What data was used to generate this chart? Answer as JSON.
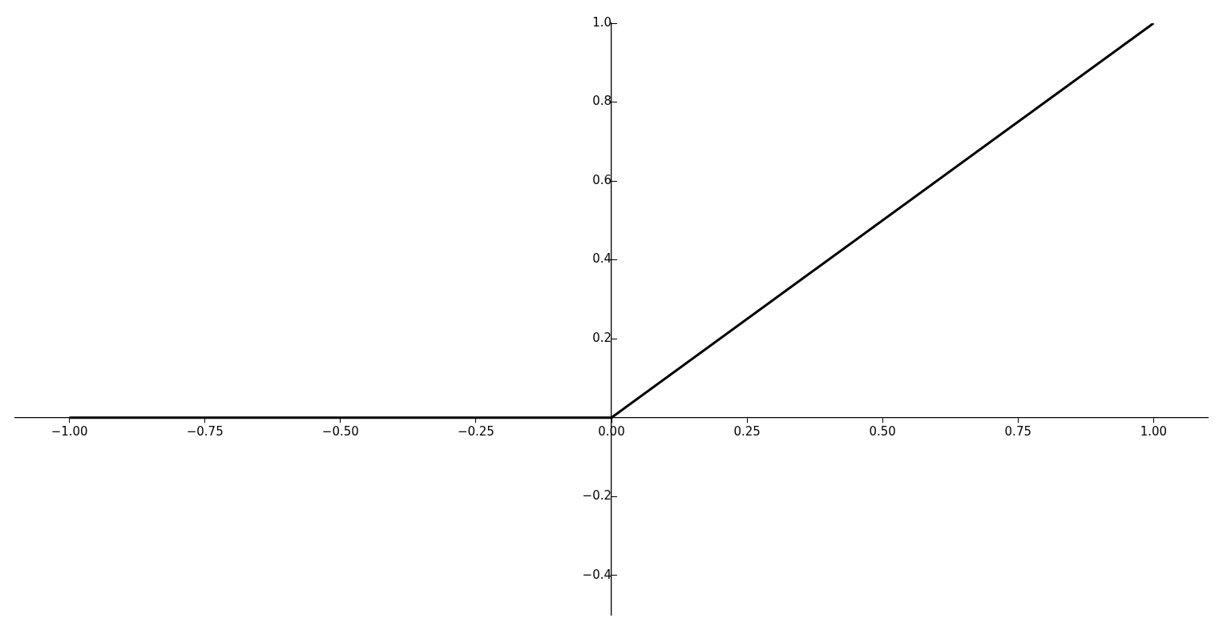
{
  "chart_data": {
    "type": "line",
    "x": [
      -1,
      0,
      1
    ],
    "values": [
      0,
      0,
      1
    ],
    "color": "#000000",
    "xlim": [
      -1.1,
      1.1
    ],
    "ylim": [
      -0.5,
      1.0
    ],
    "xticks": [
      {
        "value": -1,
        "label": "−1.00"
      },
      {
        "value": -0.75,
        "label": "−0.75"
      },
      {
        "value": -0.5,
        "label": "−0.50"
      },
      {
        "value": -0.25,
        "label": "−0.25"
      },
      {
        "value": 0,
        "label": "0.00"
      },
      {
        "value": 0.25,
        "label": "0.25"
      },
      {
        "value": 0.5,
        "label": "0.50"
      },
      {
        "value": 0.75,
        "label": "0.75"
      },
      {
        "value": 1,
        "label": "1.00"
      }
    ],
    "yticks": [
      {
        "value": -0.4,
        "label": "−0.4"
      },
      {
        "value": -0.2,
        "label": "−0.2"
      },
      0.2,
      0.4,
      0.6,
      0.8,
      {
        "value": 1.0,
        "label": "1.0"
      }
    ],
    "grid": false,
    "marker": "none",
    "line_style": "solid",
    "legend": false
  }
}
